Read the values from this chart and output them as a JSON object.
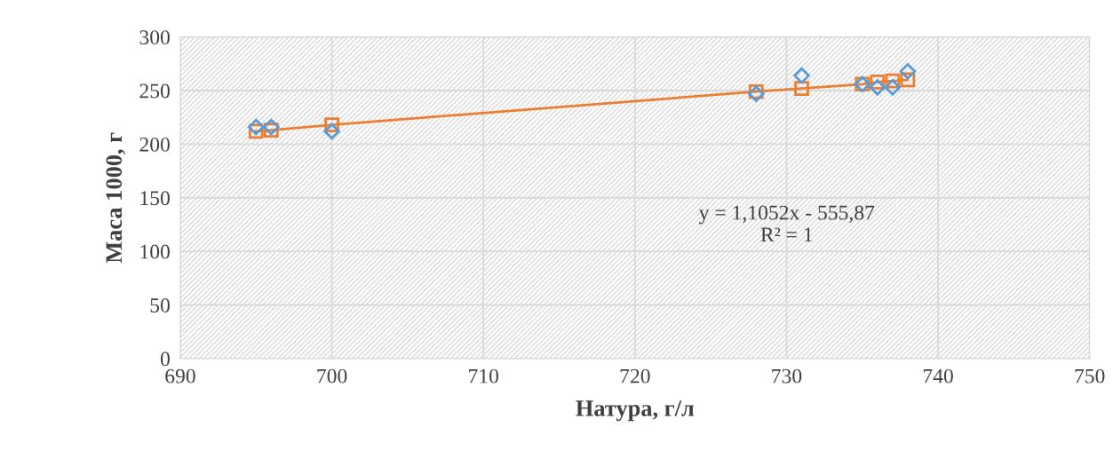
{
  "chart_data": {
    "type": "scatter",
    "xlabel": "Натура, г/л",
    "ylabel": "Маса 1000, г",
    "x": [
      695,
      696,
      700,
      728,
      731,
      735,
      736,
      737,
      738
    ],
    "series": [
      {
        "color": "#5b9bd5",
        "marker": "diamond",
        "values": [
          216,
          216,
          212,
          247,
          264,
          256,
          253,
          253,
          268
        ]
      },
      {
        "type": "line",
        "color": "#ed7d31",
        "marker": "square",
        "line_style": "solid",
        "values": [
          212,
          213,
          218,
          249,
          252,
          256,
          258,
          259,
          260
        ]
      }
    ],
    "xlim": [
      690,
      750
    ],
    "xticks": [
      690,
      700,
      710,
      720,
      730,
      740,
      750
    ],
    "ylim": [
      0,
      300
    ],
    "yticks": [
      0,
      50,
      100,
      150,
      200,
      250,
      300
    ],
    "grid": true,
    "legend": false,
    "annotations": [
      "y = 1,1052x - 555,87\nR² = 1"
    ]
  }
}
